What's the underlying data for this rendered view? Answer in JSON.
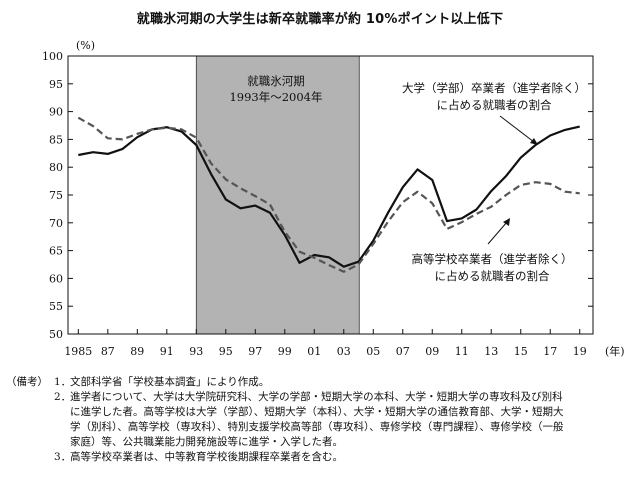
{
  "chart_data": {
    "type": "line",
    "title": "就職氷河期の大学生は新卒就職率が約 10%ポイント以上低下",
    "ylabel": "(%)",
    "xlabel": "(年)",
    "ylim": [
      50,
      100
    ],
    "xlim": [
      1985,
      2019
    ],
    "yticks": [
      50,
      55,
      60,
      65,
      70,
      75,
      80,
      85,
      90,
      95,
      100
    ],
    "xtick_values": [
      1985,
      1987,
      1989,
      1991,
      1993,
      1995,
      1997,
      1999,
      2001,
      2003,
      2005,
      2007,
      2009,
      2011,
      2013,
      2015,
      2017,
      2019
    ],
    "xtick_labels": [
      "1985",
      "87",
      "89",
      "91",
      "93",
      "95",
      "97",
      "99",
      "01",
      "03",
      "05",
      "07",
      "09",
      "11",
      "13",
      "15",
      "17",
      "19"
    ],
    "shaded_region": {
      "x": [
        1993,
        2004
      ],
      "label_line1": "就職氷河期",
      "label_line2": "1993年～2004年"
    },
    "x": [
      1985,
      1986,
      1987,
      1988,
      1989,
      1990,
      1991,
      1992,
      1993,
      1994,
      1995,
      1996,
      1997,
      1998,
      1999,
      2000,
      2001,
      2002,
      2003,
      2004,
      2005,
      2006,
      2007,
      2008,
      2009,
      2010,
      2011,
      2012,
      2013,
      2014,
      2015,
      2016,
      2017,
      2018,
      2019
    ],
    "series": [
      {
        "name": "大学（学部）卒業者（進学者除く）に占める就職者の割合",
        "style": "solid",
        "values": [
          82.2,
          82.7,
          82.4,
          83.3,
          85.4,
          86.8,
          87.2,
          86.4,
          84.0,
          78.8,
          74.2,
          72.6,
          73.1,
          71.8,
          67.8,
          62.8,
          64.2,
          63.8,
          62.1,
          63.0,
          66.8,
          71.8,
          76.4,
          79.6,
          77.7,
          70.3,
          70.8,
          72.4,
          75.7,
          78.4,
          81.7,
          84.0,
          85.7,
          86.7,
          87.3
        ],
        "color": "#111111"
      },
      {
        "name": "高等学校卒業者（進学者除く）に占める就職者の割合",
        "style": "dashed",
        "values": [
          88.9,
          87.4,
          85.2,
          85.0,
          86.0,
          86.8,
          87.1,
          86.8,
          85.3,
          80.7,
          77.8,
          76.2,
          74.8,
          73.3,
          68.4,
          64.8,
          63.7,
          62.4,
          61.2,
          62.5,
          66.2,
          70.2,
          73.7,
          75.6,
          73.5,
          68.9,
          70.1,
          71.6,
          72.9,
          75.0,
          76.8,
          77.3,
          77.0,
          75.6,
          75.3
        ],
        "color": "#555555"
      }
    ],
    "annotations": {
      "univ_line1": "大学（学部）卒業者（進学者除く）",
      "univ_line2": "に占める就職者の割合",
      "high_line1": "高等学校卒業者（進学者除く）",
      "high_line2": "に占める就職者の割合"
    },
    "grid": false
  },
  "notes": {
    "head": "（備考）",
    "items": [
      {
        "num": "1．",
        "lines": [
          "文部科学省「学校基本調査」により作成。"
        ]
      },
      {
        "num": "2．",
        "lines": [
          "進学者について、大学は大学院研究科、大学の学部・短期大学の本科、大学・短期大学の専攻科及び別科",
          "に進学した者。高等学校は大学（学部）、短期大学（本科）、大学・短期大学の通信教育部、大学・短期大",
          "学（別科）、高等学校（専攻科）、特別支援学校高等部（専攻科）、専修学校（専門課程）、専修学校（一般",
          "家庭）等、公共職業能力開発施設等に進学・入学した者。"
        ]
      },
      {
        "num": "3．",
        "lines": [
          "高等学校卒業者は、中等教育学校後期課程卒業者を含む。"
        ]
      }
    ]
  }
}
